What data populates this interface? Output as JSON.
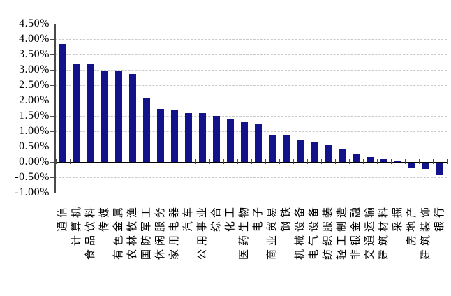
{
  "chart_data": {
    "type": "bar",
    "title": "",
    "xlabel": "",
    "ylabel": "",
    "value_unit": "percent",
    "ylim": [
      -1.0,
      4.5
    ],
    "ytick_step": 0.5,
    "ytick_labels": [
      "4.50%",
      "4.00%",
      "3.50%",
      "3.00%",
      "2.50%",
      "2.00%",
      "1.50%",
      "1.00%",
      "0.50%",
      "0.00%",
      "-0.50%",
      "-1.00%"
    ],
    "zero_label": "0.00%",
    "grid": "horizontal-dashed",
    "legend": null,
    "bar_color": "#12128B",
    "gridline_color": "#C9C9C9",
    "axis_color": "#4A4A4A",
    "zero_line_color": "#000000",
    "background_color": "#FFFFFF",
    "categories": [
      "通信",
      "计算机",
      "食品饮料",
      "传媒",
      "有色金属",
      "农林牧渔",
      "国防军工",
      "休闲服务",
      "家用电器",
      "汽车",
      "公用事业",
      "综合",
      "化工",
      "医药生物",
      "电子",
      "商业贸易",
      "钢铁",
      "机械设备",
      "电气设备",
      "纺织服装",
      "轻工制造",
      "非银金融",
      "交通运输",
      "建筑材料",
      "采掘",
      "房地产",
      "建筑装饰",
      "银行"
    ],
    "values": [
      3.85,
      3.21,
      3.19,
      2.97,
      2.96,
      2.87,
      2.06,
      1.73,
      1.69,
      1.59,
      1.58,
      1.51,
      1.38,
      1.3,
      1.23,
      0.89,
      0.89,
      0.71,
      0.63,
      0.55,
      0.42,
      0.25,
      0.15,
      0.08,
      0.02,
      -0.17,
      -0.2,
      -0.4
    ]
  }
}
